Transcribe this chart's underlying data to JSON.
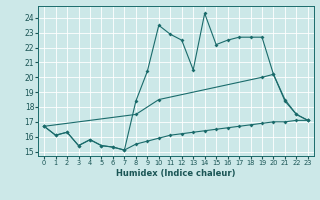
{
  "xlabel": "Humidex (Indice chaleur)",
  "bg_color": "#cce8e8",
  "grid_color": "#ffffff",
  "line_color": "#1a6b6b",
  "xlim": [
    -0.5,
    23.5
  ],
  "ylim": [
    14.7,
    24.8
  ],
  "yticks": [
    15,
    16,
    17,
    18,
    19,
    20,
    21,
    22,
    23,
    24
  ],
  "xticks": [
    0,
    1,
    2,
    3,
    4,
    5,
    6,
    7,
    8,
    9,
    10,
    11,
    12,
    13,
    14,
    15,
    16,
    17,
    18,
    19,
    20,
    21,
    22,
    23
  ],
  "line1_x": [
    0,
    1,
    2,
    3,
    4,
    5,
    6,
    7,
    8,
    9,
    10,
    11,
    12,
    13,
    14,
    15,
    16,
    17,
    18,
    19,
    20,
    21,
    22,
    23
  ],
  "line1_y": [
    16.7,
    16.1,
    16.3,
    15.4,
    15.8,
    15.4,
    15.3,
    15.1,
    15.5,
    15.7,
    15.9,
    16.1,
    16.2,
    16.3,
    16.4,
    16.5,
    16.6,
    16.7,
    16.8,
    16.9,
    17.0,
    17.0,
    17.1,
    17.1
  ],
  "line2_x": [
    0,
    8,
    10,
    19,
    20,
    21,
    22,
    23
  ],
  "line2_y": [
    16.7,
    17.5,
    18.5,
    20.0,
    20.2,
    18.5,
    17.5,
    17.1
  ],
  "line3_x": [
    0,
    1,
    2,
    3,
    4,
    5,
    6,
    7,
    8,
    9,
    10,
    11,
    12,
    13,
    14,
    15,
    16,
    17,
    18,
    19,
    20,
    21,
    22,
    23
  ],
  "line3_y": [
    16.7,
    16.1,
    16.3,
    15.4,
    15.8,
    15.4,
    15.3,
    15.1,
    18.4,
    20.4,
    23.5,
    22.9,
    22.5,
    20.5,
    24.3,
    22.2,
    22.5,
    22.7,
    22.7,
    22.7,
    20.2,
    18.4,
    17.5,
    17.1
  ]
}
